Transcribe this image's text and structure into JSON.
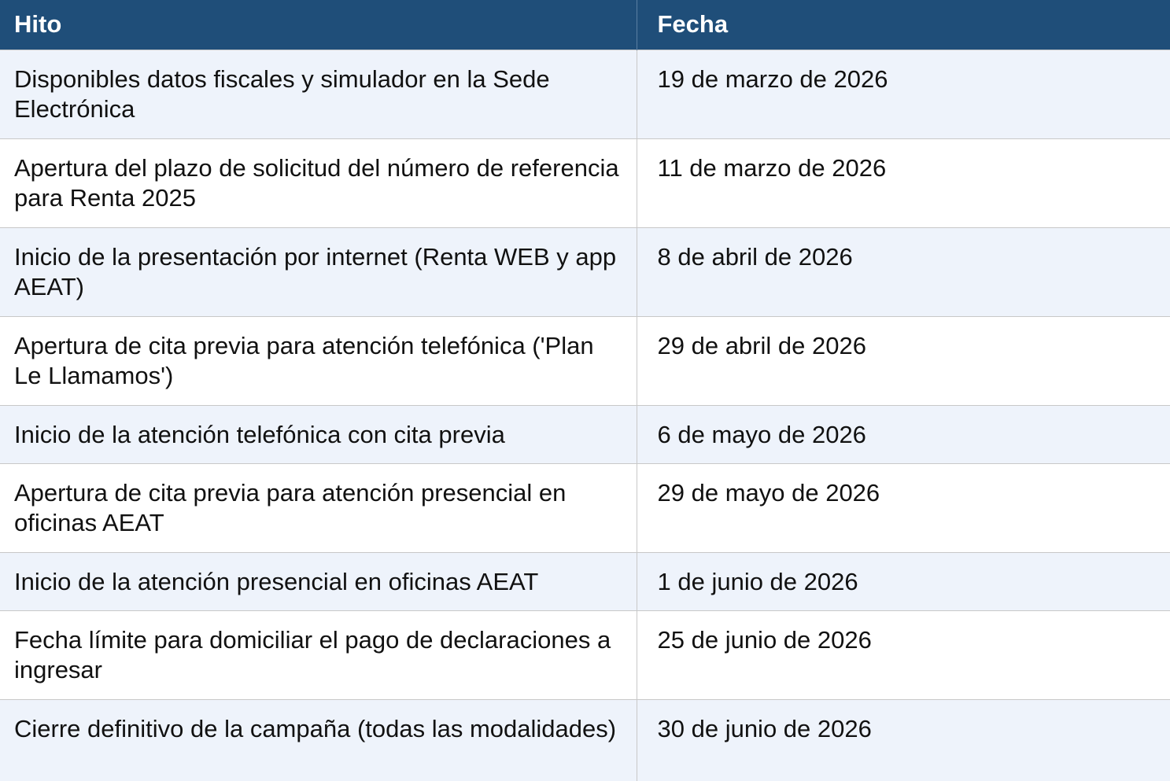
{
  "header": {
    "col1": "Hito",
    "col2": "Fecha"
  },
  "rows": [
    {
      "hito": "Disponibles datos fiscales y simulador en la Sede Electrónica",
      "fecha": "19 de marzo de 2026"
    },
    {
      "hito": "Apertura del plazo de solicitud del número de referencia para Renta 2025",
      "fecha": "11 de marzo de 2026"
    },
    {
      "hito": "Inicio de la presentación por internet (Renta WEB y app AEAT)",
      "fecha": "8 de abril de 2026"
    },
    {
      "hito": "Apertura de cita previa para atención telefónica ('Plan Le Llamamos')",
      "fecha": "29 de abril de 2026"
    },
    {
      "hito": "Inicio de la atención telefónica con cita previa",
      "fecha": "6 de mayo de 2026"
    },
    {
      "hito": "Apertura de cita previa para atención presencial en oficinas AEAT",
      "fecha": "29 de mayo de 2026"
    },
    {
      "hito": "Inicio de la atención presencial en oficinas AEAT",
      "fecha": "1 de junio de 2026"
    },
    {
      "hito": "Fecha límite para domiciliar el pago de declaraciones a ingresar",
      "fecha": "25 de junio de 2026"
    },
    {
      "hito": "Cierre definitivo de la campaña (todas las modalidades)",
      "fecha": "30 de junio de 2026"
    }
  ],
  "colors": {
    "header_bg": "#1f4e79",
    "row_alt_bg": "#eef3fb"
  }
}
